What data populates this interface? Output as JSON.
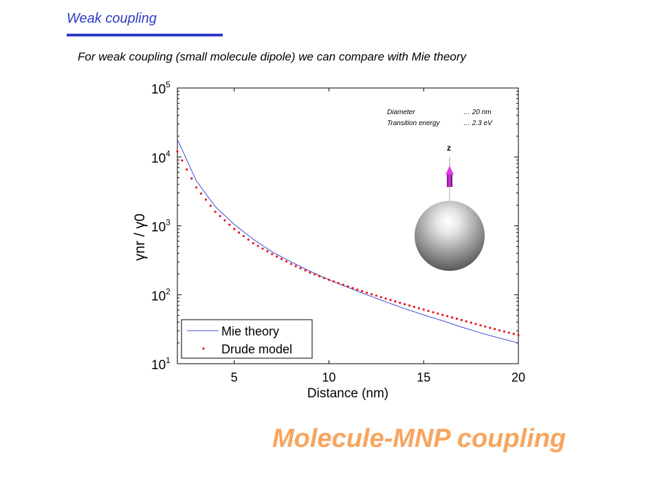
{
  "slide": {
    "heading": "Weak coupling",
    "subtitle": "For weak coupling (small molecule dipole) we can compare with Mie theory",
    "footer_title": "Molecule-MNP coupling"
  },
  "colors": {
    "heading": "#2e3bc6",
    "footer": "#f7a55f",
    "mie_line": "#3b4bd8",
    "drude_dots": "#e8101a",
    "dipole_arrow": "#c017c8"
  },
  "chart_data": {
    "type": "line",
    "xlabel": "Distance (nm)",
    "ylabel": "γnr / γ0",
    "xlim": [
      2,
      20
    ],
    "ylim": [
      10,
      100000
    ],
    "yscale": "log",
    "xticks": [
      5,
      10,
      15,
      20
    ],
    "yticks": [
      {
        "value": 10,
        "base": "10",
        "exp": "1"
      },
      {
        "value": 100,
        "base": "10",
        "exp": "2"
      },
      {
        "value": 1000,
        "base": "10",
        "exp": "3"
      },
      {
        "value": 10000,
        "base": "10",
        "exp": "4"
      },
      {
        "value": 100000,
        "base": "10",
        "exp": "5"
      }
    ],
    "grid": false,
    "legend_position": "bottom-left",
    "series": [
      {
        "name": "Mie theory",
        "style": "line",
        "x": [
          2,
          3,
          4,
          5,
          6,
          7,
          8,
          9,
          10,
          11,
          12,
          13,
          14,
          15,
          16,
          17,
          18,
          19,
          20
        ],
        "y": [
          18000,
          4500,
          1900,
          1050,
          640,
          420,
          300,
          220,
          165,
          128,
          100,
          79,
          63,
          51,
          42,
          34,
          28,
          23.5,
          20
        ]
      },
      {
        "name": "Drude model",
        "style": "dots",
        "x": [
          2,
          3,
          4,
          5,
          6,
          7,
          8,
          9,
          10,
          11,
          12,
          13,
          14,
          15,
          16,
          17,
          18,
          19,
          20
        ],
        "y": [
          12000,
          3600,
          1600,
          900,
          560,
          390,
          280,
          210,
          165,
          132,
          107,
          88,
          73,
          61,
          51,
          43,
          36,
          30.5,
          26
        ]
      }
    ],
    "annotations": [
      {
        "label": "Diameter",
        "value": "…  20 nm"
      },
      {
        "label": "Transition energy",
        "value": "…  2.3 eV"
      }
    ],
    "inset_axis_label": "z"
  }
}
